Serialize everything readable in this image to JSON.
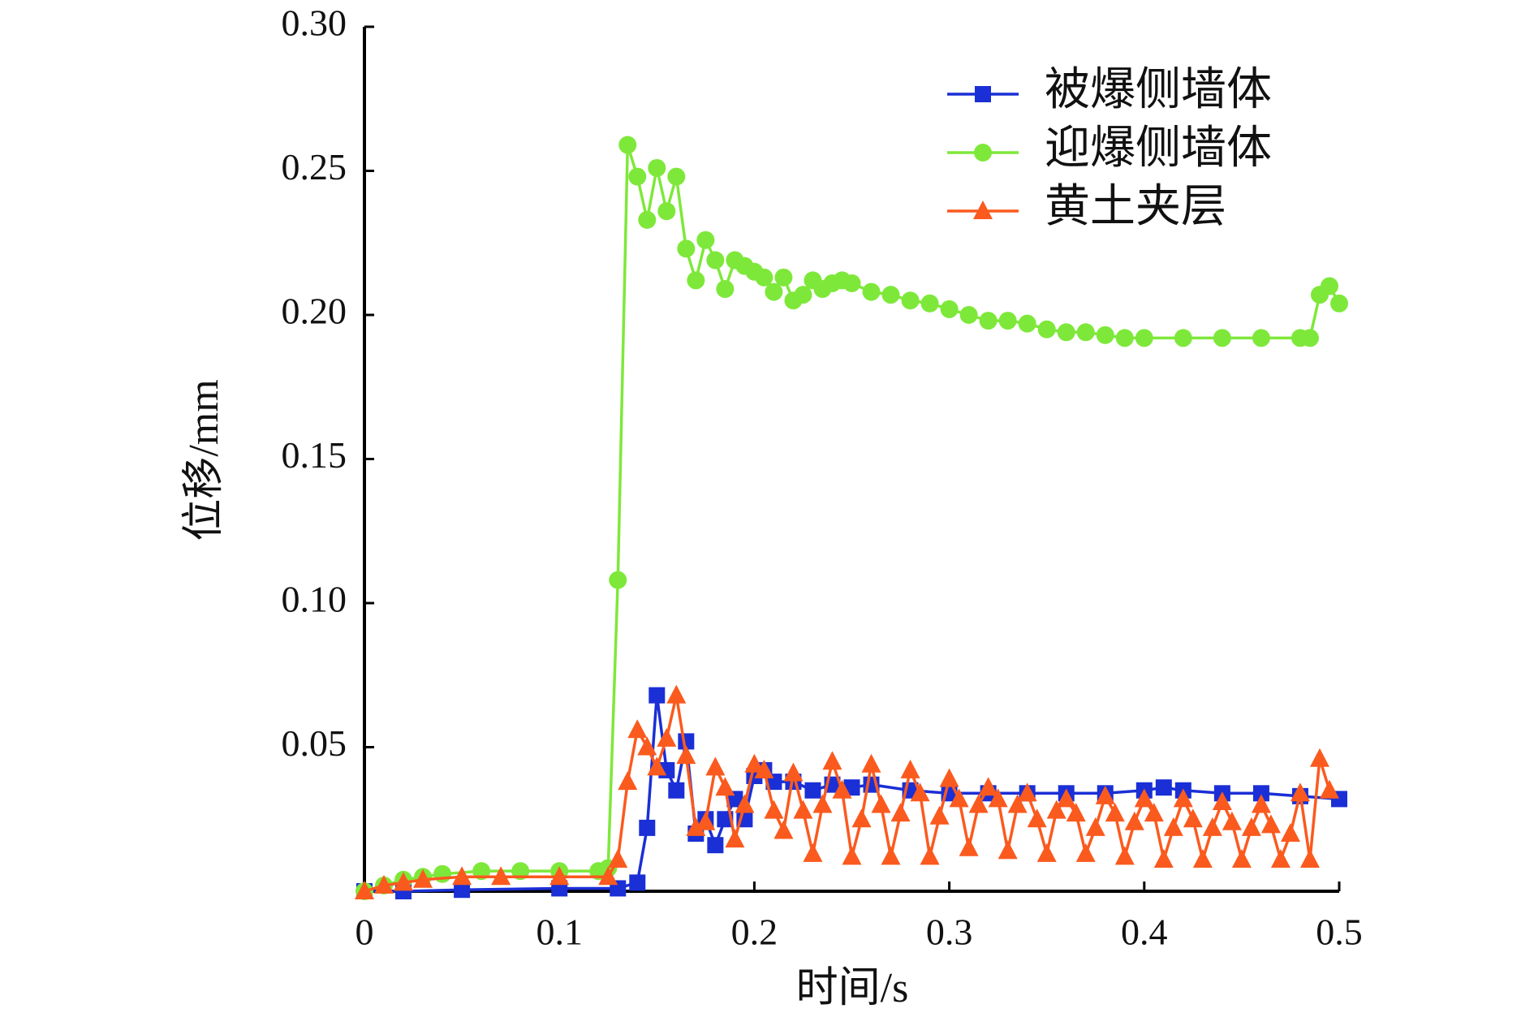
{
  "chart_data": {
    "type": "line",
    "xlabel": "时间/s",
    "ylabel": "位移/mm",
    "xlim": [
      0,
      0.5
    ],
    "xticks": [
      0,
      0.1,
      0.2,
      0.3,
      0.4,
      0.5
    ],
    "ylim": [
      0,
      0.3
    ],
    "yticks": [
      0.05,
      {
        "value": 0.1,
        "label": "0.10"
      },
      0.15,
      {
        "value": 0.2,
        "label": "0.20"
      },
      0.25,
      {
        "value": 0.3,
        "label": "0.30"
      }
    ],
    "grid": false,
    "legend": "upper right",
    "series": [
      {
        "name": "被爆侧墙体",
        "color": "#1a2fd6",
        "marker": "square",
        "x": [
          0,
          0.02,
          0.05,
          0.1,
          0.13,
          0.14,
          0.145,
          0.15,
          0.155,
          0.16,
          0.165,
          0.17,
          0.175,
          0.18,
          0.185,
          0.19,
          0.195,
          0.2,
          0.205,
          0.21,
          0.22,
          0.23,
          0.24,
          0.25,
          0.26,
          0.28,
          0.3,
          0.32,
          0.34,
          0.36,
          0.38,
          0.4,
          0.41,
          0.42,
          0.44,
          0.46,
          0.48,
          0.5
        ],
        "values": [
          0,
          0,
          0.0005,
          0.001,
          0.001,
          0.003,
          0.022,
          0.068,
          0.042,
          0.035,
          0.052,
          0.02,
          0.025,
          0.016,
          0.025,
          0.032,
          0.025,
          0.04,
          0.042,
          0.038,
          0.038,
          0.035,
          0.037,
          0.036,
          0.037,
          0.035,
          0.034,
          0.034,
          0.034,
          0.034,
          0.034,
          0.035,
          0.036,
          0.035,
          0.034,
          0.034,
          0.033,
          0.032
        ]
      },
      {
        "name": "迎爆侧墙体",
        "color": "#7ee83a",
        "marker": "circle",
        "x": [
          0,
          0.01,
          0.02,
          0.03,
          0.04,
          0.06,
          0.08,
          0.1,
          0.12,
          0.125,
          0.13,
          0.135,
          0.14,
          0.145,
          0.15,
          0.155,
          0.16,
          0.165,
          0.17,
          0.175,
          0.18,
          0.185,
          0.19,
          0.195,
          0.2,
          0.205,
          0.21,
          0.215,
          0.22,
          0.225,
          0.23,
          0.235,
          0.24,
          0.245,
          0.25,
          0.26,
          0.27,
          0.28,
          0.29,
          0.3,
          0.31,
          0.32,
          0.33,
          0.34,
          0.35,
          0.36,
          0.37,
          0.38,
          0.39,
          0.4,
          0.42,
          0.44,
          0.46,
          0.48,
          0.485,
          0.49,
          0.495,
          0.5
        ],
        "values": [
          0,
          0.002,
          0.004,
          0.005,
          0.006,
          0.007,
          0.007,
          0.007,
          0.007,
          0.008,
          0.108,
          0.259,
          0.248,
          0.233,
          0.251,
          0.236,
          0.248,
          0.223,
          0.212,
          0.226,
          0.219,
          0.209,
          0.219,
          0.217,
          0.215,
          0.213,
          0.208,
          0.213,
          0.205,
          0.207,
          0.212,
          0.209,
          0.211,
          0.212,
          0.211,
          0.208,
          0.207,
          0.205,
          0.204,
          0.202,
          0.2,
          0.198,
          0.198,
          0.197,
          0.195,
          0.194,
          0.194,
          0.193,
          0.192,
          0.192,
          0.192,
          0.192,
          0.192,
          0.192,
          0.192,
          0.207,
          0.21,
          0.204
        ]
      },
      {
        "name": "黄土夹层",
        "color": "#fb5a1e",
        "marker": "triangle",
        "x": [
          0,
          0.01,
          0.02,
          0.03,
          0.05,
          0.07,
          0.1,
          0.125,
          0.13,
          0.135,
          0.14,
          0.145,
          0.15,
          0.155,
          0.16,
          0.165,
          0.17,
          0.175,
          0.18,
          0.185,
          0.19,
          0.195,
          0.2,
          0.205,
          0.21,
          0.215,
          0.22,
          0.225,
          0.23,
          0.235,
          0.24,
          0.245,
          0.25,
          0.255,
          0.26,
          0.265,
          0.27,
          0.275,
          0.28,
          0.285,
          0.29,
          0.295,
          0.3,
          0.305,
          0.31,
          0.315,
          0.32,
          0.325,
          0.33,
          0.335,
          0.34,
          0.345,
          0.35,
          0.355,
          0.36,
          0.365,
          0.37,
          0.375,
          0.38,
          0.385,
          0.39,
          0.395,
          0.4,
          0.405,
          0.41,
          0.415,
          0.42,
          0.425,
          0.43,
          0.435,
          0.44,
          0.445,
          0.45,
          0.455,
          0.46,
          0.465,
          0.47,
          0.475,
          0.48,
          0.485,
          0.49,
          0.495
        ],
        "values": [
          0,
          0.002,
          0.003,
          0.004,
          0.005,
          0.005,
          0.005,
          0.005,
          0.011,
          0.038,
          0.056,
          0.05,
          0.043,
          0.053,
          0.068,
          0.047,
          0.022,
          0.024,
          0.043,
          0.036,
          0.018,
          0.03,
          0.044,
          0.042,
          0.028,
          0.021,
          0.041,
          0.028,
          0.013,
          0.03,
          0.045,
          0.035,
          0.012,
          0.025,
          0.044,
          0.03,
          0.012,
          0.027,
          0.042,
          0.034,
          0.012,
          0.026,
          0.039,
          0.032,
          0.015,
          0.03,
          0.036,
          0.032,
          0.014,
          0.03,
          0.034,
          0.025,
          0.013,
          0.028,
          0.032,
          0.027,
          0.013,
          0.022,
          0.033,
          0.027,
          0.012,
          0.024,
          0.032,
          0.027,
          0.011,
          0.022,
          0.032,
          0.025,
          0.011,
          0.022,
          0.031,
          0.024,
          0.011,
          0.022,
          0.03,
          0.023,
          0.011,
          0.02,
          0.034,
          0.011,
          0.046,
          0.035
        ]
      }
    ]
  }
}
